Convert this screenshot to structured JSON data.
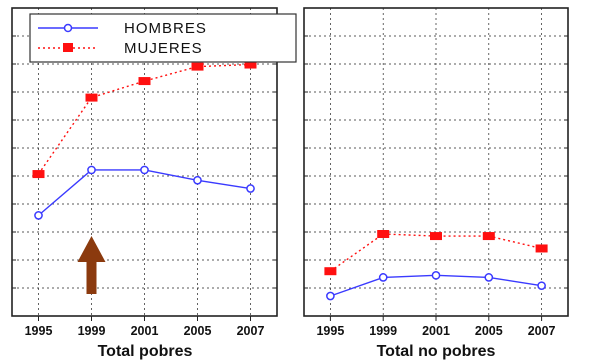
{
  "chart_data": [
    {
      "type": "line",
      "title": "Total pobres",
      "categories": [
        "1995",
        "1999",
        "2001",
        "2005",
        "2007"
      ],
      "ylim": [
        0,
        12
      ],
      "grid": true,
      "legend_position": "top-left",
      "series": [
        {
          "name": "HOMBRES",
          "values": [
            3.9,
            6.1,
            6.1,
            5.6,
            5.2
          ],
          "color": "#3a3aff",
          "line": "solid",
          "marker": "open-circle"
        },
        {
          "name": "MUJERES",
          "values": [
            5.9,
            9.6,
            10.4,
            11.1,
            11.2
          ],
          "color": "#ff1010",
          "line": "dotted",
          "marker": "filled-square"
        }
      ],
      "annotation": {
        "type": "arrow",
        "direction": "up",
        "at_category": "1999",
        "color": "#8b3a0e"
      }
    },
    {
      "type": "line",
      "title": "Total no  pobres",
      "categories": [
        "1995",
        "1999",
        "2001",
        "2005",
        "2007"
      ],
      "ylim": [
        0,
        12
      ],
      "grid": true,
      "series": [
        {
          "name": "HOMBRES",
          "values": [
            0.0,
            0.9,
            1.0,
            0.9,
            0.5
          ],
          "color": "#3a3aff",
          "line": "solid",
          "marker": "open-circle"
        },
        {
          "name": "MUJERES",
          "values": [
            1.2,
            3.0,
            2.9,
            2.9,
            2.3
          ],
          "color": "#ff1010",
          "line": "dotted",
          "marker": "filled-square"
        }
      ]
    }
  ]
}
